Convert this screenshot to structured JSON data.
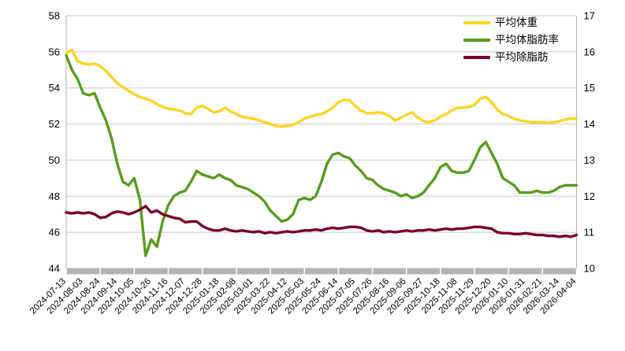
{
  "chart_data": {
    "type": "line",
    "title": "",
    "xlabel": "",
    "ylabel_left": "",
    "ylabel_right": "",
    "grid": true,
    "legend_position": "top-right-inside",
    "plot_bg": "#ffffff",
    "grid_color": "#c8c8c8",
    "axis_band_color": "#b3b3b3",
    "left_axis": {
      "min": 44,
      "max": 58,
      "step": 2,
      "tick_labels": [
        "58",
        "56",
        "54",
        "52",
        "50",
        "48",
        "46",
        "44"
      ]
    },
    "right_axis": {
      "min": 10,
      "max": 17,
      "step": 1,
      "tick_labels": [
        "17",
        "16",
        "15",
        "14",
        "13",
        "12",
        "11",
        "10"
      ]
    },
    "x_tick_labels": [
      "2024-07-13",
      "2024-08-03",
      "2024-08-24",
      "2024-09-14",
      "2024-10-05",
      "2024-10-26",
      "2024-11-16",
      "2024-12-07",
      "2024-12-28",
      "2025-01-18",
      "2025-02-08",
      "2025-03-01",
      "2025-03-22",
      "2025-04-12",
      "2025-05-03",
      "2025-05-24",
      "2025-06-14",
      "2025-07-05",
      "2025-07-26",
      "2025-08-16",
      "2025-09-06",
      "2025-09-27",
      "2025-10-18",
      "2025-11-08",
      "2025-11-29",
      "2025-12-20",
      "2026-01-10",
      "2026-01-31",
      "2026-02-21",
      "2026-03-14",
      "2026-04-04"
    ],
    "points_per_tick": 3,
    "series": [
      {
        "key": "avg-weight",
        "name": "平均体重",
        "axis": "left",
        "color": "#FFD320",
        "values": [
          55.95,
          56.1,
          55.5,
          55.35,
          55.3,
          55.35,
          55.2,
          54.95,
          54.6,
          54.25,
          54.05,
          53.85,
          53.65,
          53.5,
          53.4,
          53.3,
          53.1,
          52.95,
          52.85,
          52.8,
          52.75,
          52.6,
          52.55,
          52.9,
          53.0,
          52.85,
          52.65,
          52.7,
          52.9,
          52.7,
          52.55,
          52.4,
          52.35,
          52.3,
          52.2,
          52.1,
          52.0,
          51.9,
          51.85,
          51.9,
          51.95,
          52.1,
          52.3,
          52.4,
          52.5,
          52.55,
          52.7,
          52.9,
          53.2,
          53.35,
          53.3,
          53.0,
          52.75,
          52.6,
          52.6,
          52.65,
          52.6,
          52.45,
          52.2,
          52.35,
          52.5,
          52.65,
          52.35,
          52.15,
          52.1,
          52.2,
          52.4,
          52.55,
          52.75,
          52.9,
          52.9,
          52.95,
          53.05,
          53.4,
          53.5,
          53.2,
          52.8,
          52.55,
          52.45,
          52.3,
          52.2,
          52.15,
          52.1,
          52.1,
          52.1,
          52.05,
          52.1,
          52.15,
          52.25,
          52.3,
          52.3
        ]
      },
      {
        "key": "avg-body-fat-rate",
        "name": "平均体脂肪率",
        "axis": "right",
        "color": "#579D1C",
        "values": [
          15.9,
          15.5,
          15.25,
          14.85,
          14.8,
          14.85,
          14.45,
          14.1,
          13.6,
          12.9,
          12.4,
          12.3,
          12.5,
          11.9,
          10.35,
          10.8,
          10.6,
          11.3,
          11.75,
          12.0,
          12.1,
          12.15,
          12.4,
          12.7,
          12.6,
          12.55,
          12.5,
          12.6,
          12.5,
          12.45,
          12.3,
          12.25,
          12.2,
          12.1,
          12.0,
          11.85,
          11.6,
          11.45,
          11.3,
          11.35,
          11.5,
          11.9,
          11.95,
          11.9,
          12.0,
          12.4,
          12.9,
          13.15,
          13.2,
          13.1,
          13.05,
          12.85,
          12.7,
          12.5,
          12.45,
          12.3,
          12.2,
          12.15,
          12.1,
          12.0,
          12.05,
          11.95,
          12.0,
          12.1,
          12.3,
          12.5,
          12.8,
          12.9,
          12.7,
          12.65,
          12.65,
          12.7,
          13.0,
          13.35,
          13.5,
          13.2,
          12.9,
          12.5,
          12.4,
          12.3,
          12.1,
          12.1,
          12.1,
          12.15,
          12.1,
          12.1,
          12.15,
          12.25,
          12.3,
          12.3,
          12.3
        ]
      },
      {
        "key": "avg-lean-mass",
        "name": "平均除脂肪",
        "axis": "left",
        "color": "#7E0021",
        "values": [
          47.1,
          47.05,
          47.1,
          47.05,
          47.1,
          47.0,
          46.8,
          46.85,
          47.05,
          47.15,
          47.1,
          47.0,
          47.1,
          47.25,
          47.45,
          47.1,
          47.2,
          47.0,
          46.9,
          46.8,
          46.75,
          46.55,
          46.6,
          46.6,
          46.35,
          46.2,
          46.1,
          46.1,
          46.2,
          46.1,
          46.05,
          46.1,
          46.05,
          46.0,
          46.05,
          45.95,
          46.0,
          45.95,
          46.0,
          46.05,
          46.0,
          46.05,
          46.1,
          46.1,
          46.15,
          46.1,
          46.2,
          46.25,
          46.2,
          46.25,
          46.3,
          46.3,
          46.25,
          46.1,
          46.05,
          46.1,
          46.0,
          46.05,
          46.0,
          46.05,
          46.1,
          46.05,
          46.1,
          46.1,
          46.15,
          46.1,
          46.15,
          46.2,
          46.15,
          46.2,
          46.2,
          46.25,
          46.3,
          46.3,
          46.25,
          46.2,
          46.0,
          45.95,
          45.95,
          45.9,
          45.9,
          45.95,
          45.9,
          45.85,
          45.85,
          45.8,
          45.8,
          45.75,
          45.8,
          45.75,
          45.85
        ]
      }
    ]
  },
  "legend": {
    "items": [
      {
        "label": "平均体重"
      },
      {
        "label": "平均体脂肪率"
      },
      {
        "label": "平均除脂肪"
      }
    ]
  }
}
